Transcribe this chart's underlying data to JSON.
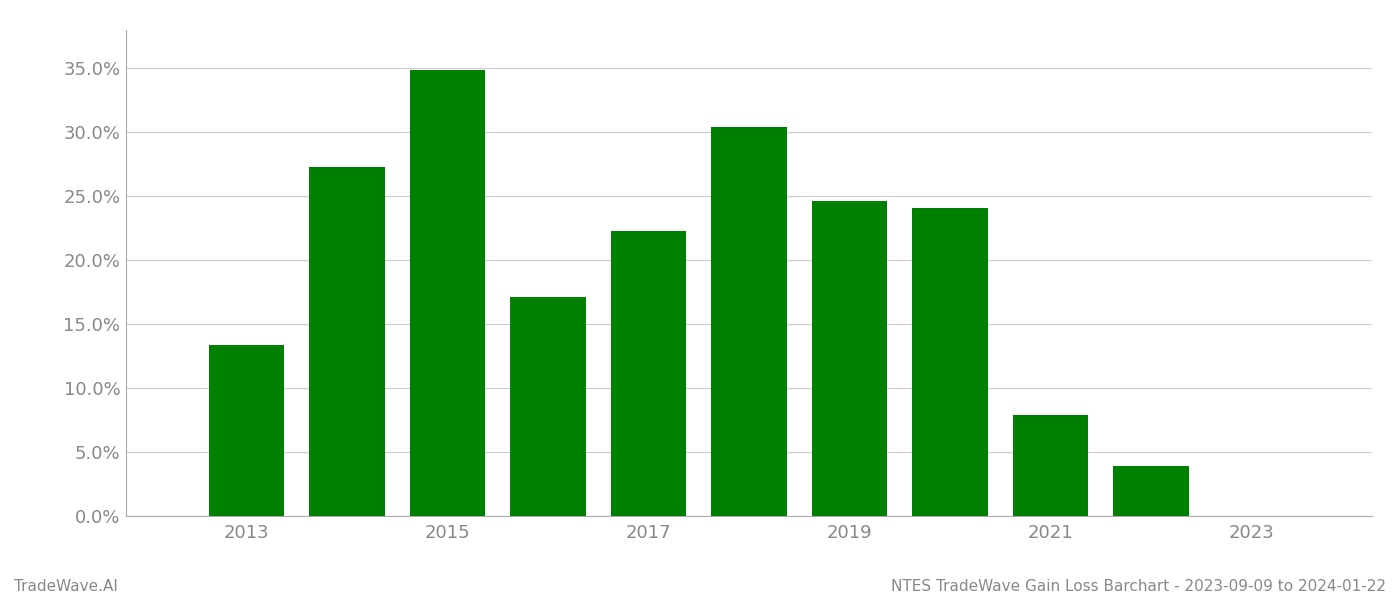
{
  "years": [
    2013,
    2014,
    2015,
    2016,
    2017,
    2018,
    2019,
    2020,
    2021,
    2022,
    2023
  ],
  "values": [
    0.134,
    0.273,
    0.349,
    0.171,
    0.223,
    0.304,
    0.246,
    0.241,
    0.079,
    0.039,
    0.0
  ],
  "bar_color": "#008000",
  "title": "NTES TradeWave Gain Loss Barchart - 2023-09-09 to 2024-01-22",
  "watermark": "TradeWave.AI",
  "ylim": [
    0,
    0.38
  ],
  "yticks": [
    0.0,
    0.05,
    0.1,
    0.15,
    0.2,
    0.25,
    0.3,
    0.35
  ],
  "xtick_labels": [
    2013,
    2015,
    2017,
    2019,
    2021,
    2023
  ],
  "background_color": "#ffffff",
  "grid_color": "#cccccc",
  "title_fontsize": 11,
  "watermark_fontsize": 11,
  "axis_label_color": "#888888",
  "bar_width": 0.75
}
